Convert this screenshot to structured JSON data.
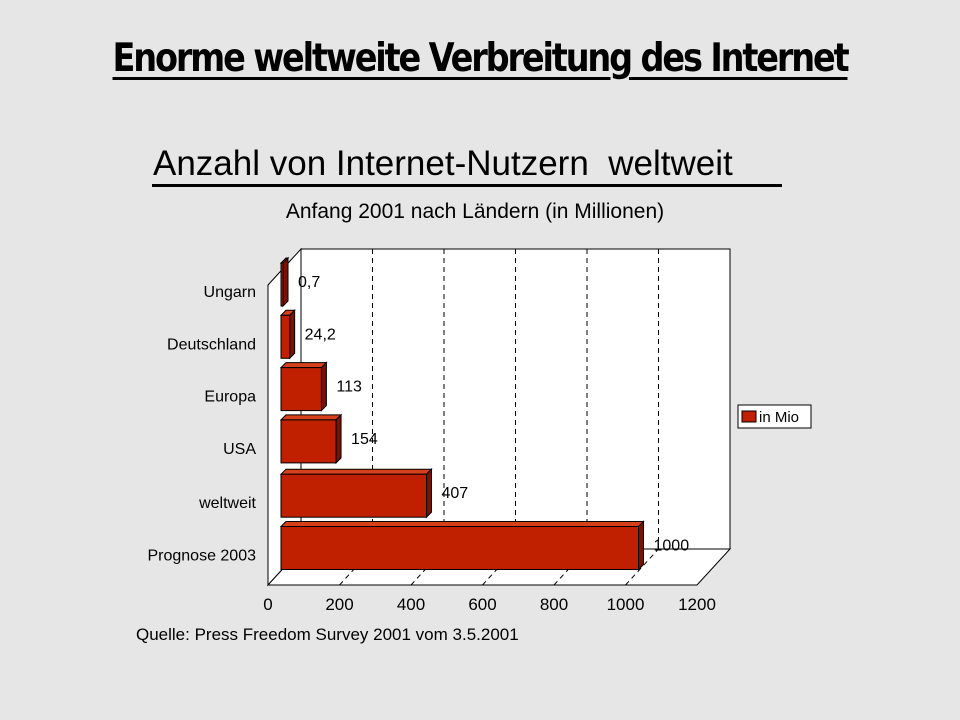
{
  "slide": {
    "title": "Enorme weltweite Verbreitung des Internet",
    "source": "Quelle: Press Freedom Survey 2001 vom 3.5.2001"
  },
  "colors": {
    "background": "#e6e6e6",
    "bar_front": "#c02000",
    "bar_side": "#7a1200",
    "bar_top": "#d8401c"
  },
  "chart_data": {
    "type": "bar",
    "orientation": "horizontal",
    "title": "Anzahl von Internet-Nutzern  weltweit",
    "subtitle": "Anfang 2001 nach Ländern (in Millionen)",
    "categories": [
      "Ungarn",
      "Deutschland",
      "Europa",
      "USA",
      "weltweit",
      "Prognose 2003"
    ],
    "series": [
      {
        "name": "in Mio",
        "values": [
          0.7,
          24.2,
          113,
          154,
          407,
          1000
        ]
      }
    ],
    "value_labels": [
      "0,7",
      "24,2",
      "113",
      "154",
      "407",
      "1000"
    ],
    "xlim": [
      0,
      1200
    ],
    "x_ticks": [
      "0",
      "200",
      "400",
      "600",
      "800",
      "1000",
      "1200"
    ],
    "grid": true,
    "legend_position": "right",
    "three_d": true
  }
}
